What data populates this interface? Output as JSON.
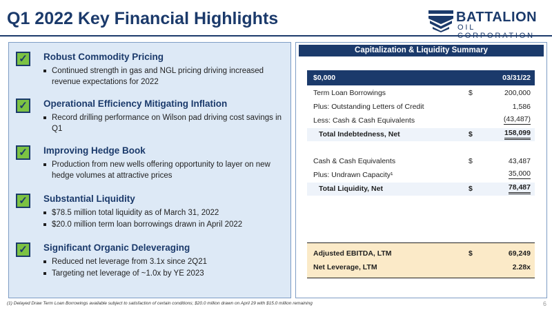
{
  "header": {
    "title": "Q1 2022 Key Financial Highlights",
    "logo_line1": "BATTALION",
    "logo_line2": "OIL CORPORATION",
    "logo_icon": "chevron-stack-icon"
  },
  "sections": [
    {
      "heading": "Robust Commodity Pricing",
      "bullets": [
        "Continued strength in gas and NGL pricing driving increased revenue expectations for 2022"
      ]
    },
    {
      "heading": "Operational Efficiency Mitigating Inflation",
      "bullets": [
        "Record drilling performance on Wilson pad driving cost savings in Q1"
      ]
    },
    {
      "heading": "Improving Hedge Book",
      "bullets": [
        "Production from new wells offering opportunity to layer on new hedge volumes at attractive prices"
      ]
    },
    {
      "heading": "Substantial Liquidity",
      "bullets": [
        "$78.5 million total liquidity as of March 31, 2022",
        "$20.0 million term loan borrowings drawn in April 2022"
      ]
    },
    {
      "heading": "Significant Organic Deleveraging",
      "bullets": [
        "Reduced net leverage from 3.1x since 2Q21",
        "Targeting net leverage of ~1.0x by YE 2023"
      ]
    }
  ],
  "check_glyph": "✓",
  "summary": {
    "title": "Capitalization & Liquidity Summary",
    "col_label": "$0,000",
    "col_date": "03/31/22",
    "rows": [
      {
        "label": "Term Loan Borrowings",
        "dollar": "$",
        "value": "200,000"
      },
      {
        "label": "Plus: Outstanding Letters of Credit",
        "dollar": "",
        "value": "1,586"
      },
      {
        "label": "Less: Cash & Cash Equivalents",
        "dollar": "",
        "value": "(43,487)"
      },
      {
        "label": "Total Indebtedness, Net",
        "dollar": "$",
        "value": "158,099"
      },
      {
        "label": "Cash & Cash Equivalents",
        "dollar": "$",
        "value": "43,487"
      },
      {
        "label": "Plus: Undrawn Capacity¹",
        "dollar": "",
        "value": "35,000"
      },
      {
        "label": "Total Liquidity, Net",
        "dollar": "$",
        "value": "78,487"
      }
    ],
    "ebitda": {
      "label": "Adjusted EBITDA, LTM",
      "dollar": "$",
      "value": "69,249"
    },
    "leverage": {
      "label": "Net Leverage, LTM",
      "value": "2.28x"
    }
  },
  "footnote": "(1)    Delayed Draw Term Loan Borrowings available subject to satisfaction of certain conditions; $20.0 million drawn on April 29 with $15.0 million remaining",
  "page_number": "6",
  "colors": {
    "navy": "#1b3a6b",
    "check_green": "#7cc243",
    "panel_bg": "#dde9f6",
    "ebitda_bg": "#fbeac8"
  }
}
